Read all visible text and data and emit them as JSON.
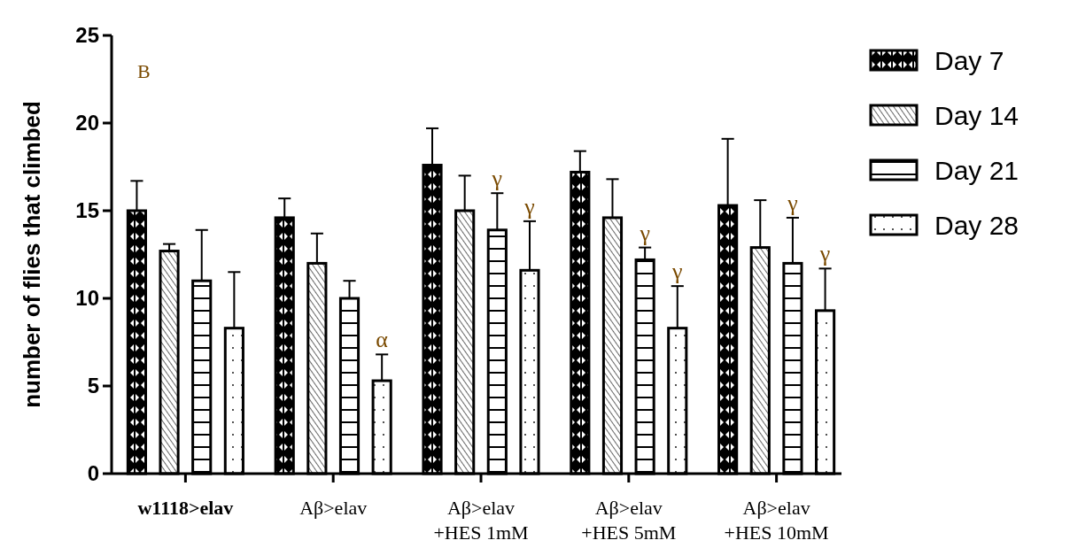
{
  "chart_data": {
    "type": "bar",
    "ylabel": "number of flies that climbed",
    "categories": [
      "w1118>elav",
      "Aβ>elav",
      "Aβ>elav\n+HES 1mM",
      "Aβ>elav\n+HES 5mM",
      "Aβ>elav\n+HES 10mM"
    ],
    "series": [
      {
        "name": "Day 7",
        "color": "#000000",
        "values": [
          15.0,
          14.6,
          17.6,
          17.2,
          15.3
        ],
        "errors": [
          1.7,
          1.1,
          2.1,
          1.2,
          3.8
        ]
      },
      {
        "name": "Day 14",
        "color": "#000000",
        "values": [
          12.7,
          12.0,
          15.0,
          14.6,
          12.9
        ],
        "errors": [
          0.4,
          1.7,
          2.0,
          2.2,
          2.7
        ]
      },
      {
        "name": "Day 21",
        "color": "#000000",
        "values": [
          11.0,
          10.0,
          13.9,
          12.2,
          12.0
        ],
        "errors": [
          2.9,
          1.0,
          2.1,
          0.7,
          2.6
        ]
      },
      {
        "name": "Day 28",
        "color": "#000000",
        "values": [
          8.3,
          5.3,
          11.6,
          8.3,
          9.3
        ],
        "errors": [
          3.2,
          1.5,
          2.8,
          2.4,
          2.4
        ]
      }
    ],
    "ylim": [
      0,
      25
    ],
    "yticks": [
      0,
      5,
      10,
      15,
      20,
      25
    ],
    "legend": "right",
    "annotations": [
      "B",
      "α",
      "γ",
      "γ",
      "γ",
      "γ",
      "γ",
      "γ"
    ]
  }
}
